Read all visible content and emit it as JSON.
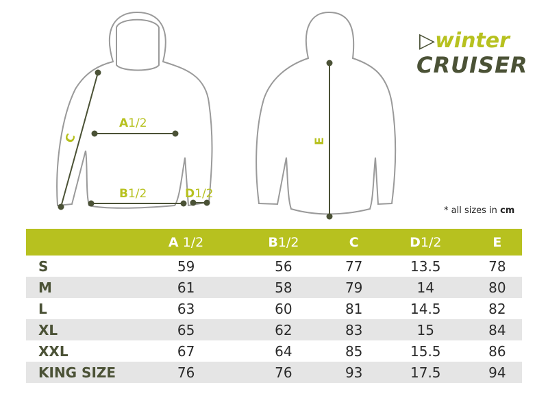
{
  "colors": {
    "accent": "#b7c11f",
    "dark": "#4b5236",
    "outline": "#9a9a9a",
    "row_alt": "#e5e5e5"
  },
  "logo": {
    "line1": "winter",
    "line2": "CRUISER"
  },
  "diagram": {
    "labels": {
      "a": "A",
      "a_frac": "1/2",
      "b": "B",
      "b_frac": "1/2",
      "c": "C",
      "d": "D",
      "d_frac": "1/2",
      "e": "E"
    }
  },
  "note": {
    "prefix": "* all sizes in ",
    "unit": "cm"
  },
  "table": {
    "headers": [
      {
        "letter": "",
        "frac": ""
      },
      {
        "letter": "A",
        "frac": " 1/2"
      },
      {
        "letter": "B",
        "frac": "1/2"
      },
      {
        "letter": "C",
        "frac": ""
      },
      {
        "letter": "D",
        "frac": "1/2"
      },
      {
        "letter": "E",
        "frac": ""
      }
    ],
    "rows": [
      {
        "size": "S",
        "values": [
          "59",
          "56",
          "77",
          "13.5",
          "78"
        ]
      },
      {
        "size": "M",
        "values": [
          "61",
          "58",
          "79",
          "14",
          "80"
        ]
      },
      {
        "size": "L",
        "values": [
          "63",
          "60",
          "81",
          "14.5",
          "82"
        ]
      },
      {
        "size": "XL",
        "values": [
          "65",
          "62",
          "83",
          "15",
          "84"
        ]
      },
      {
        "size": "XXL",
        "values": [
          "67",
          "64",
          "85",
          "15.5",
          "86"
        ]
      },
      {
        "size": "KING SIZE",
        "values": [
          "76",
          "76",
          "93",
          "17.5",
          "94"
        ]
      }
    ]
  }
}
